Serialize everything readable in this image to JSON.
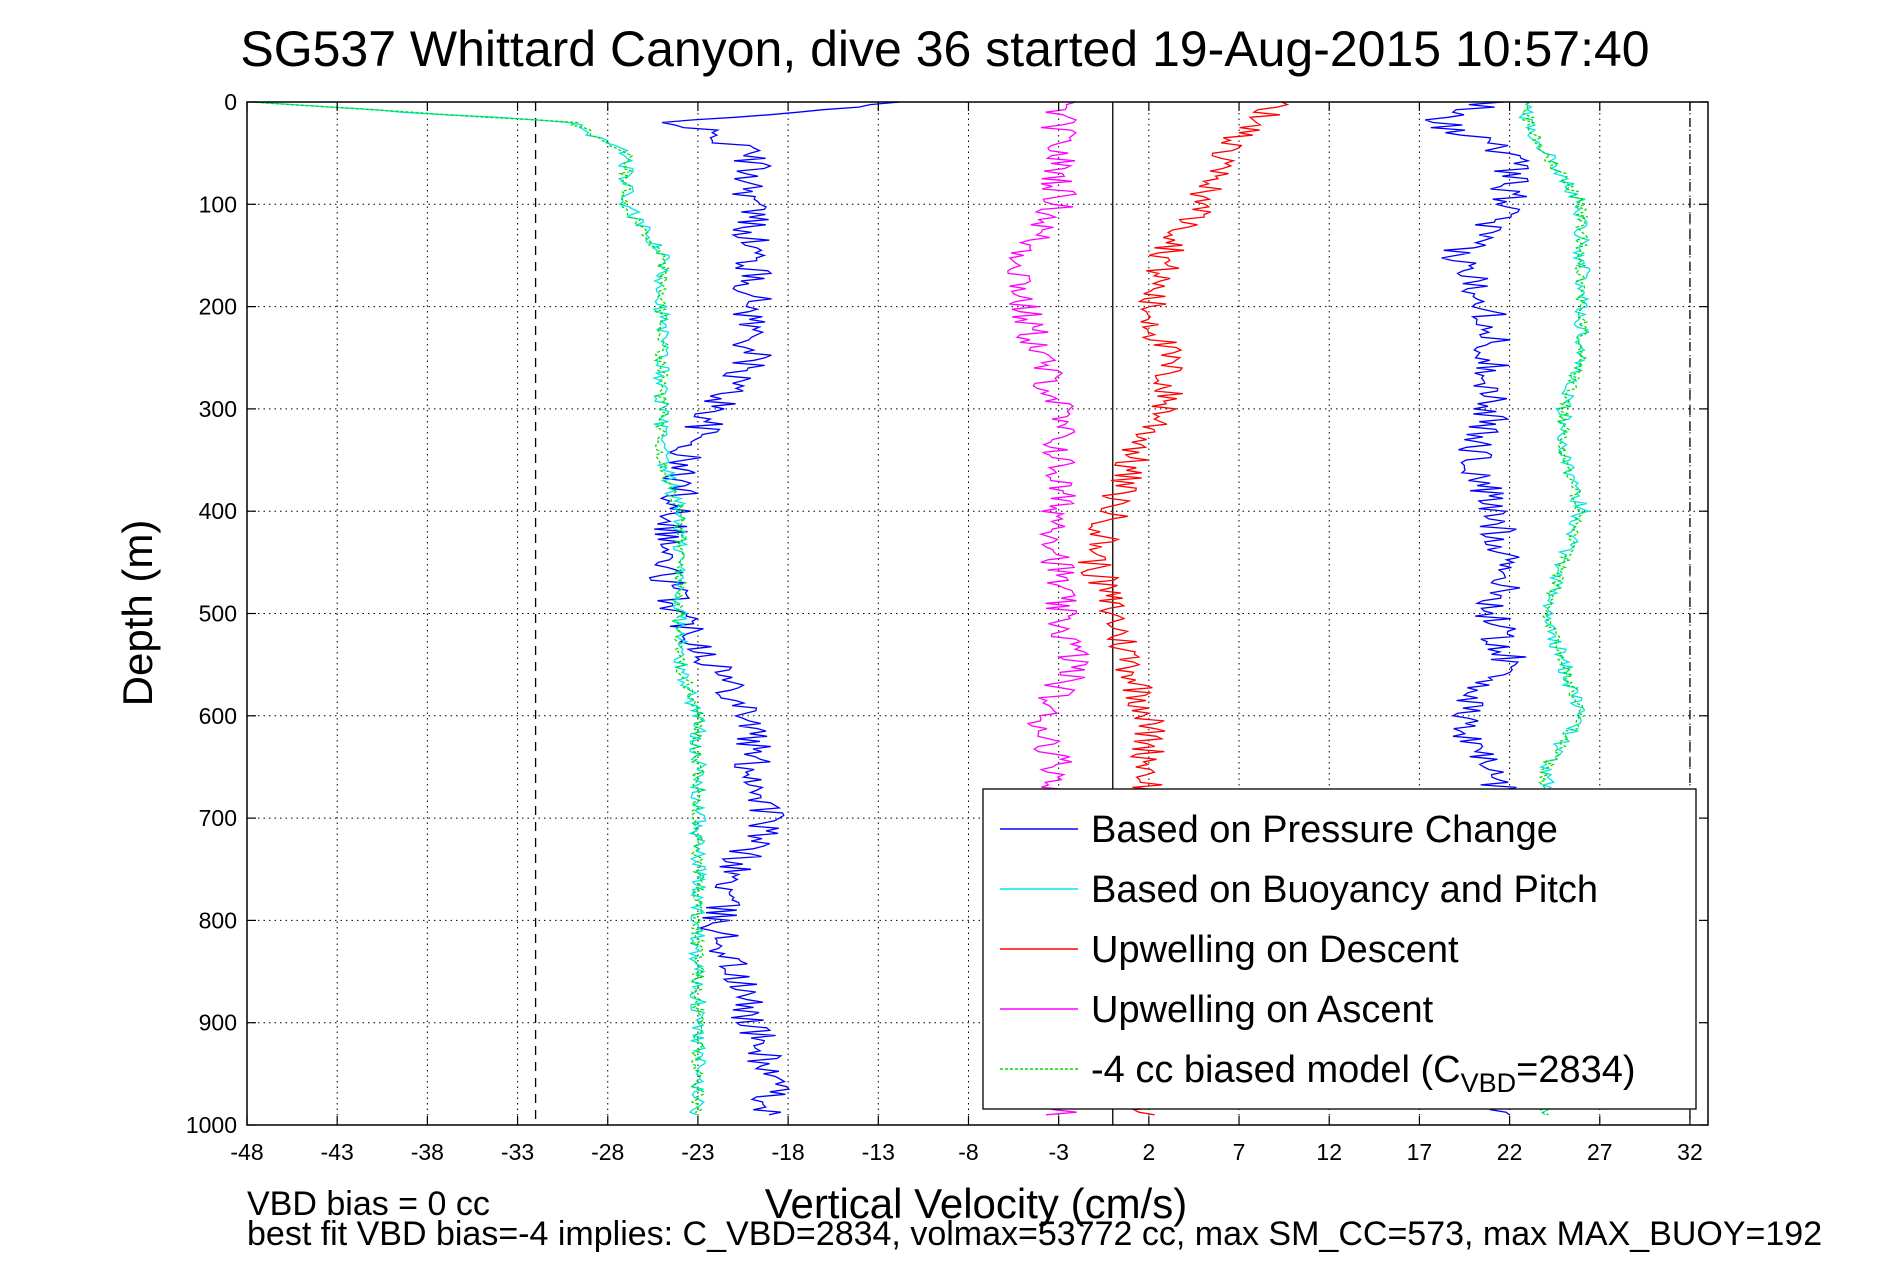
{
  "chart_data": {
    "type": "line",
    "title": "SG537 Whittard Canyon, dive 36 started 19-Aug-2015 10:57:40",
    "xlabel": "Vertical Velocity (cm/s)",
    "ylabel": "Depth (m)",
    "xlim": [
      -48,
      33
    ],
    "ylim": [
      0,
      1000
    ],
    "y_reversed": true,
    "grid": true,
    "legend_position": "bottom-right",
    "x_ticks": [
      "-48",
      "-43",
      "-38",
      "-33",
      "-28",
      "-23",
      "-18",
      "-13",
      "-8",
      "-3",
      "2",
      "7",
      "12",
      "17",
      "22",
      "27",
      "32"
    ],
    "y_ticks": [
      "0",
      "100",
      "200",
      "300",
      "400",
      "500",
      "600",
      "700",
      "800",
      "900",
      "1000"
    ],
    "reference_lines": {
      "vertical_solid": 0,
      "vertical_dashed": [
        -32,
        32
      ]
    },
    "depth": [
      0,
      20,
      50,
      100,
      150,
      200,
      250,
      300,
      350,
      400,
      450,
      500,
      550,
      600,
      650,
      700,
      750,
      800,
      850,
      900,
      950,
      990
    ],
    "series": [
      {
        "name": "Based on Pressure Change",
        "color": "#0000ff",
        "segment": "descent",
        "values": [
          -12,
          -24,
          -20,
          -20,
          -20,
          -20,
          -20,
          -22,
          -24,
          -24,
          -25,
          -24,
          -22,
          -20,
          -20,
          -19,
          -21,
          -22,
          -21,
          -20,
          -19,
          -19
        ]
      },
      {
        "name": "Based on Buoyancy and Pitch",
        "color": "#00e5e5",
        "segment": "descent",
        "values": [
          -48,
          -30,
          -27,
          -27,
          -25,
          -25,
          -25,
          -25,
          -25,
          -24,
          -24,
          -24,
          -24,
          -23,
          -23,
          -23,
          -23,
          -23,
          -23,
          -23,
          -23,
          -23
        ]
      },
      {
        "name": "Based on Pressure Change",
        "color": "#0000ff",
        "segment": "ascent",
        "values": [
          21,
          18,
          22,
          22,
          19,
          21,
          21,
          21,
          20,
          21,
          22,
          21,
          22,
          19,
          21,
          22,
          22,
          22,
          22,
          22,
          22,
          22
        ]
      },
      {
        "name": "Based on Buoyancy and Pitch",
        "color": "#00e5e5",
        "segment": "ascent",
        "values": [
          23,
          23,
          24,
          26,
          26,
          26,
          26,
          25,
          25,
          26,
          25,
          24,
          25,
          26,
          24,
          24,
          24,
          24,
          24,
          24,
          24,
          24
        ]
      },
      {
        "name": "Upwelling on Descent",
        "color": "#ff0000",
        "segment": "descent",
        "values": [
          9,
          8,
          6,
          5,
          3,
          2,
          3,
          3,
          1,
          0,
          -1,
          0,
          1,
          2,
          2,
          2,
          2,
          2,
          2,
          2,
          2,
          2
        ]
      },
      {
        "name": "Upwelling on Ascent",
        "color": "#ff00ff",
        "segment": "ascent",
        "values": [
          -3,
          -3,
          -3,
          -3,
          -5,
          -5,
          -4,
          -3,
          -3,
          -3,
          -3,
          -3,
          -2,
          -4,
          -3,
          -3,
          -3,
          -3,
          -3,
          -3,
          -3,
          -3
        ]
      },
      {
        "name": "-4 cc biased model (C",
        "name_sub": "VBD",
        "name_suffix": "=2834)",
        "color": "#00dd00",
        "dashed": true,
        "segment": "both",
        "values": [
          -48,
          -30,
          -27,
          -27,
          -25,
          -25,
          -25,
          -25,
          -25,
          -24,
          -24,
          -24,
          -24,
          -23,
          -23,
          -23,
          -23,
          -23,
          -23,
          -23,
          -23,
          -23
        ],
        "values_ascent": [
          23,
          23,
          24,
          26,
          26,
          26,
          26,
          25,
          25,
          26,
          25,
          24,
          25,
          26,
          24,
          24,
          24,
          24,
          24,
          24,
          24,
          24
        ]
      }
    ],
    "notes": [
      "VBD bias = 0 cc",
      "best fit VBD bias=-4 implies: C_VBD=2834, volmax=53772 cc, max SM_CC=573, max MAX_BUOY=192"
    ]
  }
}
